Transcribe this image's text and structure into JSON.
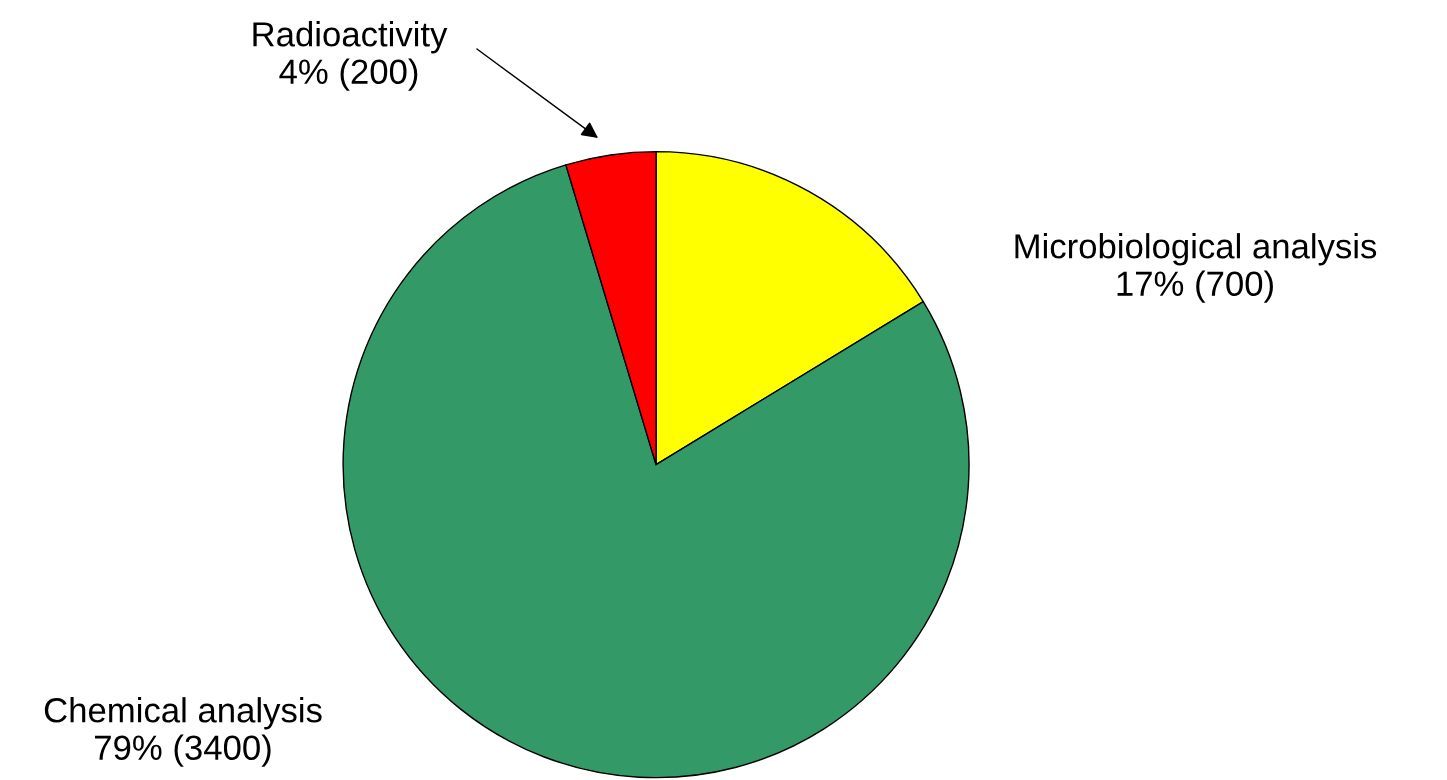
{
  "chart_data": {
    "type": "pie",
    "categories": [
      "Microbiological analysis",
      "Chemical analysis",
      "Radioactivity"
    ],
    "values": [
      700,
      3400,
      200
    ],
    "colors": [
      "#ffff00",
      "#339966",
      "#ff0000"
    ],
    "value_labels": [
      "17% (700)",
      "79% (3400)",
      "4% (200)"
    ]
  }
}
